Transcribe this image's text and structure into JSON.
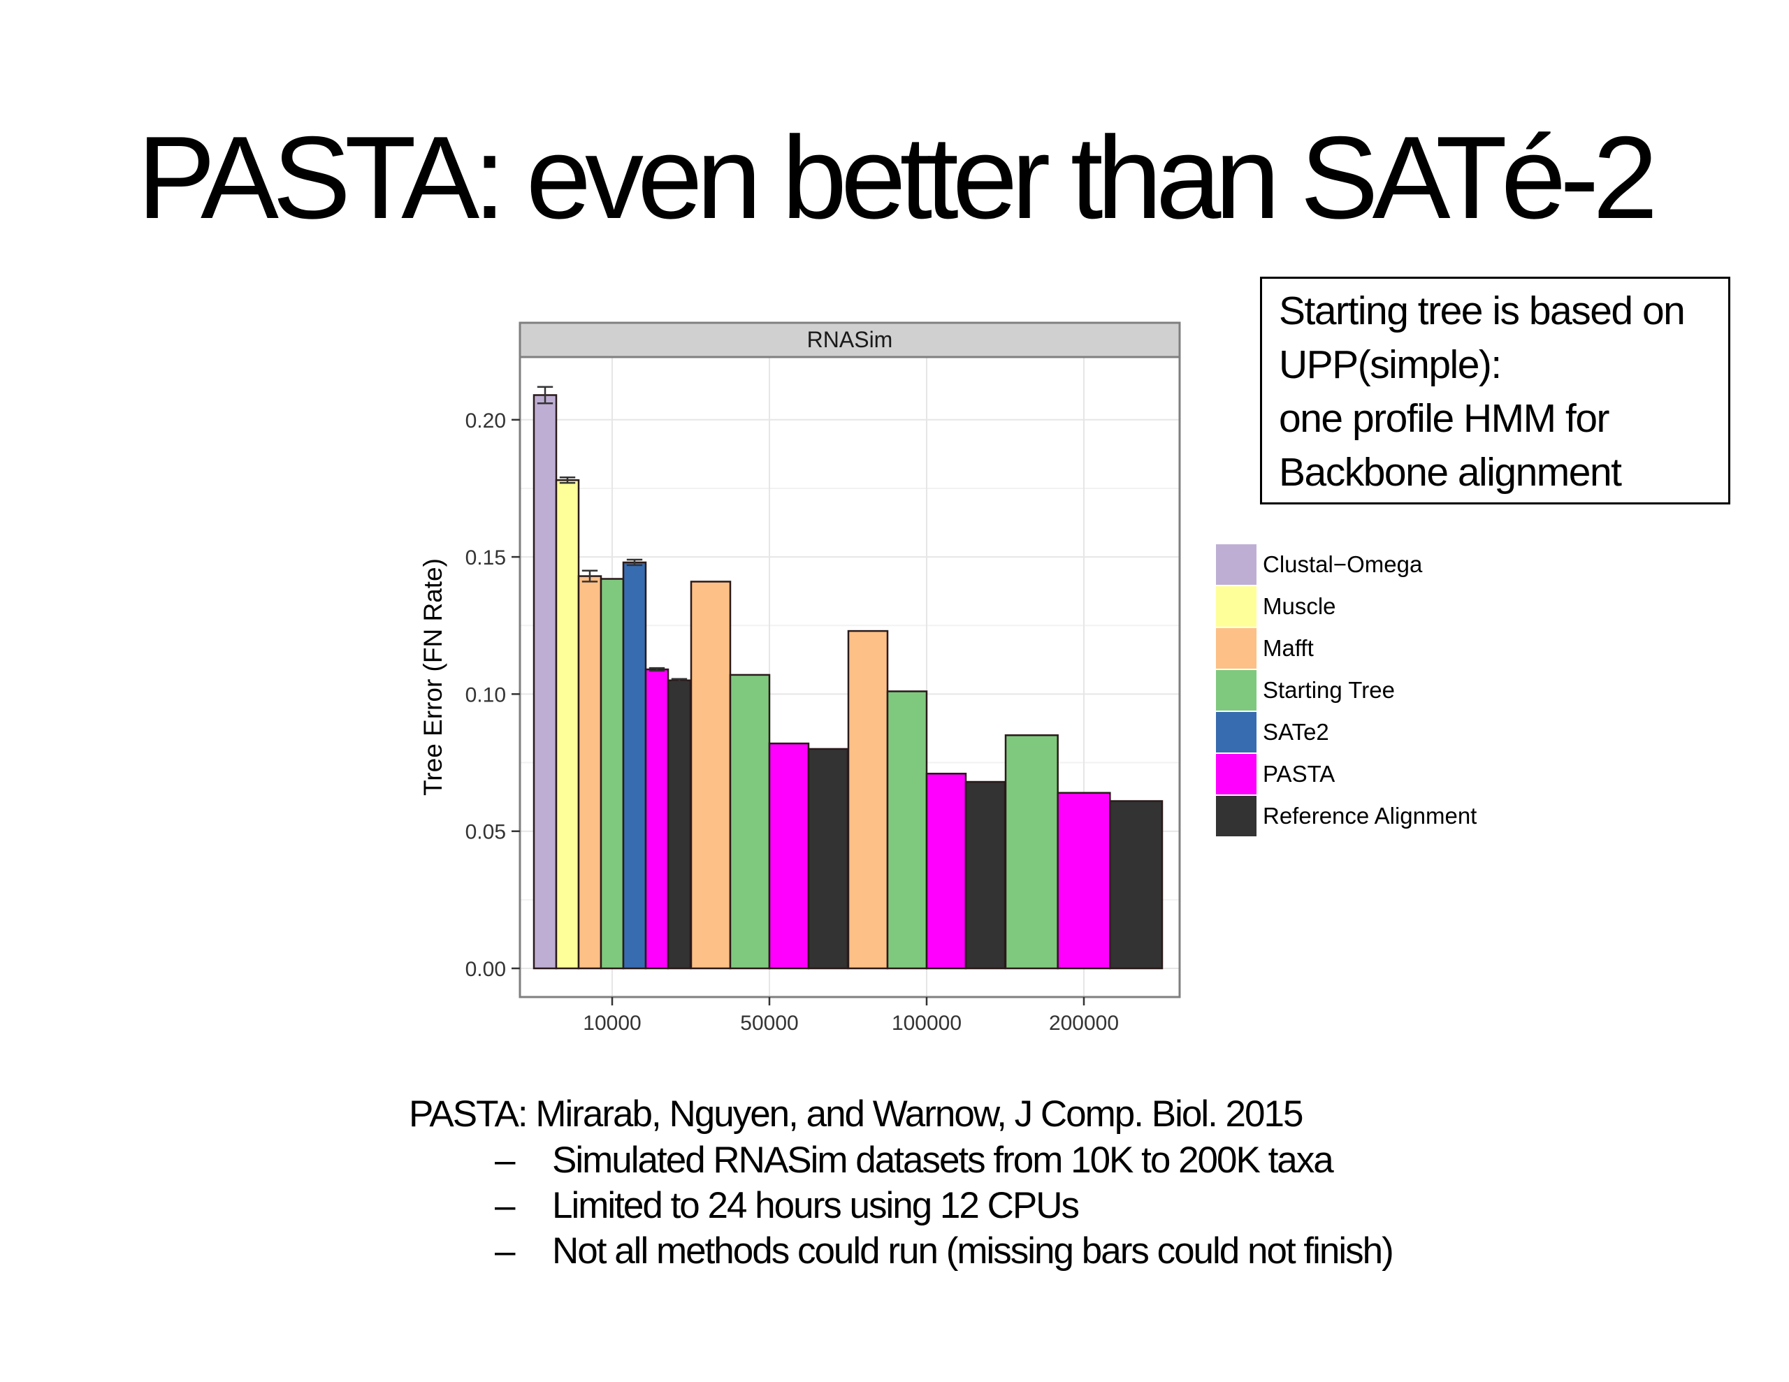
{
  "slide": {
    "title": "PASTA: even better than SATé-2",
    "callout_lines": [
      "Starting tree is based on",
      "UPP(simple):",
      "one profile HMM for",
      "Backbone alignment"
    ],
    "reference": "PASTA: Mirarab, Nguyen, and Warnow, J Comp. Biol. 2015",
    "bullet_marker": "–",
    "bullets": [
      "Simulated RNASim datasets from 10K to 200K taxa",
      "Limited to 24 hours using 12 CPUs",
      "Not all methods could run (missing bars could not finish)"
    ]
  },
  "chart_data": {
    "type": "bar",
    "facet_title": "RNASim",
    "xlabel": "",
    "ylabel": "Tree Error (FN Rate)",
    "ylim": [
      0,
      0.22
    ],
    "yticks": [
      0.0,
      0.05,
      0.1,
      0.15,
      0.2
    ],
    "ytick_labels": [
      "0.00",
      "0.05",
      "0.10",
      "0.15",
      "0.20"
    ],
    "categories": [
      "10000",
      "50000",
      "100000",
      "200000"
    ],
    "grid": true,
    "legend_position": "right",
    "series": [
      {
        "name": "Clustal−Omega",
        "color": "#beaed4",
        "values": [
          0.209,
          null,
          null,
          null
        ],
        "error": [
          0.003,
          null,
          null,
          null
        ]
      },
      {
        "name": "Muscle",
        "color": "#ffff99",
        "values": [
          0.178,
          null,
          null,
          null
        ],
        "error": [
          0.001,
          null,
          null,
          null
        ]
      },
      {
        "name": "Mafft",
        "color": "#fdc086",
        "values": [
          0.143,
          0.141,
          0.123,
          null
        ],
        "error": [
          0.002,
          null,
          null,
          null
        ]
      },
      {
        "name": "Starting Tree",
        "color": "#7fc97f",
        "values": [
          0.142,
          0.107,
          0.101,
          0.085
        ],
        "error": [
          null,
          null,
          null,
          null
        ]
      },
      {
        "name": "SATe2",
        "color": "#386cb0",
        "values": [
          0.148,
          null,
          null,
          null
        ],
        "error": [
          0.001,
          null,
          null,
          null
        ]
      },
      {
        "name": "PASTA",
        "color": "#ff00ff",
        "values": [
          0.109,
          0.082,
          0.071,
          0.064
        ],
        "error": [
          0.0005,
          null,
          null,
          null
        ]
      },
      {
        "name": "Reference Alignment",
        "color": "#333333",
        "values": [
          0.105,
          0.08,
          0.068,
          0.061
        ],
        "error": [
          0.0005,
          null,
          null,
          null
        ]
      }
    ]
  }
}
